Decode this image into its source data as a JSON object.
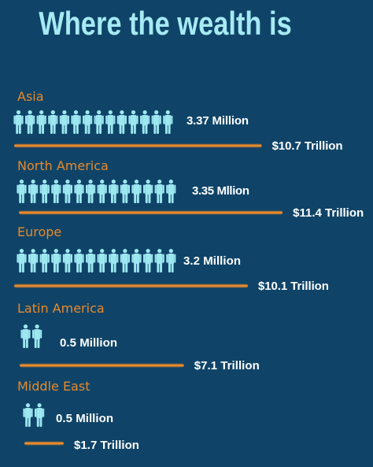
{
  "chart_data": {
    "type": "pictograph-bar",
    "title": "Where the wealth is",
    "regions": [
      {
        "name": "Asia",
        "people_label": "3.37 Million",
        "people_millions": 3.37,
        "icons": 14,
        "wealth_label": "$10.7 Trillion",
        "wealth_trillions": 10.7
      },
      {
        "name": "North America",
        "people_label": "3.35 Mllion",
        "people_millions": 3.35,
        "icons": 14,
        "wealth_label": "$11.4 Trillion",
        "wealth_trillions": 11.4
      },
      {
        "name": "Europe",
        "people_label": "3.2 Million",
        "people_millions": 3.2,
        "icons": 14,
        "wealth_label": "$10.1 Trillion",
        "wealth_trillions": 10.1
      },
      {
        "name": "Latin America",
        "people_label": "0.5 Million",
        "people_millions": 0.5,
        "icons": 2,
        "wealth_label": "$7.1 Trillion",
        "wealth_trillions": 7.1
      },
      {
        "name": "Middle East",
        "people_label": "0.5 Million",
        "people_millions": 0.5,
        "icons": 2,
        "wealth_label": "$1.7 Trillion",
        "wealth_trillions": 1.7
      }
    ]
  },
  "colors": {
    "background": "#0f4468",
    "title": "#a6eaf3",
    "region_label": "#e8892b",
    "person_icon": "#9de7f1",
    "bar": "#e8892b",
    "value_text": "#ffffff"
  },
  "icon": "person-icon"
}
